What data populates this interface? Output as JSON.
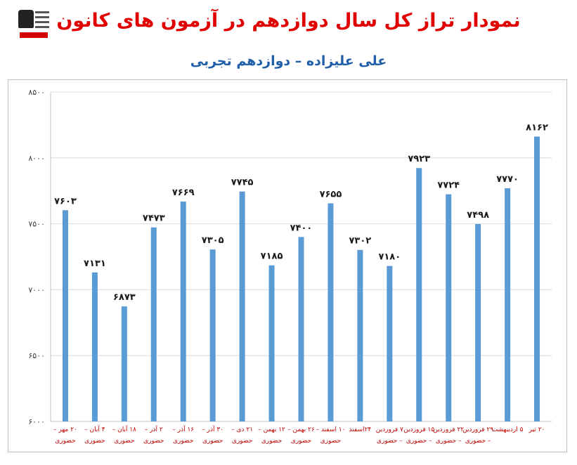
{
  "title": "نمودار تراز کل سال دوازدهم در آزمون های کانون",
  "subtitle": "علی علیزاده – دوازدهم تجربی",
  "colors": {
    "bar": "#5b9bd5",
    "title": "#e00000",
    "subtitle": "#1f5ea8",
    "category": "#c00000",
    "grid": "#d9d9d9"
  },
  "chart_data": {
    "type": "bar",
    "ylim": [
      6000,
      8500
    ],
    "yticks": [
      "۶۰۰۰",
      "۶۵۰۰",
      "۷۰۰۰",
      "۷۵۰۰",
      "۸۰۰۰",
      "۸۵۰۰"
    ],
    "grid": true,
    "categories": [
      [
        "۲۰ مهر –",
        "حضوری"
      ],
      [
        "۴ آبان –",
        "حضوری"
      ],
      [
        "۱۸ آبان –",
        "حضوری"
      ],
      [
        "۲ آذر –",
        "حضوری"
      ],
      [
        "۱۶ آذر –",
        "حضوری"
      ],
      [
        "۳۰ آذر –",
        "حضوری"
      ],
      [
        "۲۱ دی –",
        "حضوری"
      ],
      [
        "۱۲ بهمن –",
        "حضوری"
      ],
      [
        "۲۶ بهمن –",
        "حضوری"
      ],
      [
        "۱۰ اسفند –",
        "حضوری"
      ],
      [
        "۲۴اسفند",
        ""
      ],
      [
        "۷ فروردین",
        "– حضوری"
      ],
      [
        "۱۵ فروردین",
        "– حضوری"
      ],
      [
        "۲۲ فروردین",
        "– حضوری"
      ],
      [
        "۲۹ فروردین",
        "– حضوری"
      ],
      [
        "۵ اردیبهشت",
        ""
      ],
      [
        "۲۰ تیر",
        ""
      ]
    ],
    "values": [
      7603,
      7131,
      6873,
      7473,
      7669,
      7305,
      7745,
      7185,
      7400,
      7655,
      7302,
      7180,
      7923,
      7724,
      7498,
      7770,
      8162
    ],
    "value_labels": [
      "۷۶۰۳",
      "۷۱۳۱",
      "۶۸۷۳",
      "۷۴۷۳",
      "۷۶۶۹",
      "۷۳۰۵",
      "۷۷۴۵",
      "۷۱۸۵",
      "۷۴۰۰",
      "۷۶۵۵",
      "۷۳۰۲",
      "۷۱۸۰",
      "۷۹۲۳",
      "۷۷۲۴",
      "۷۴۹۸",
      "۷۷۷۰",
      "۸۱۶۲"
    ]
  }
}
